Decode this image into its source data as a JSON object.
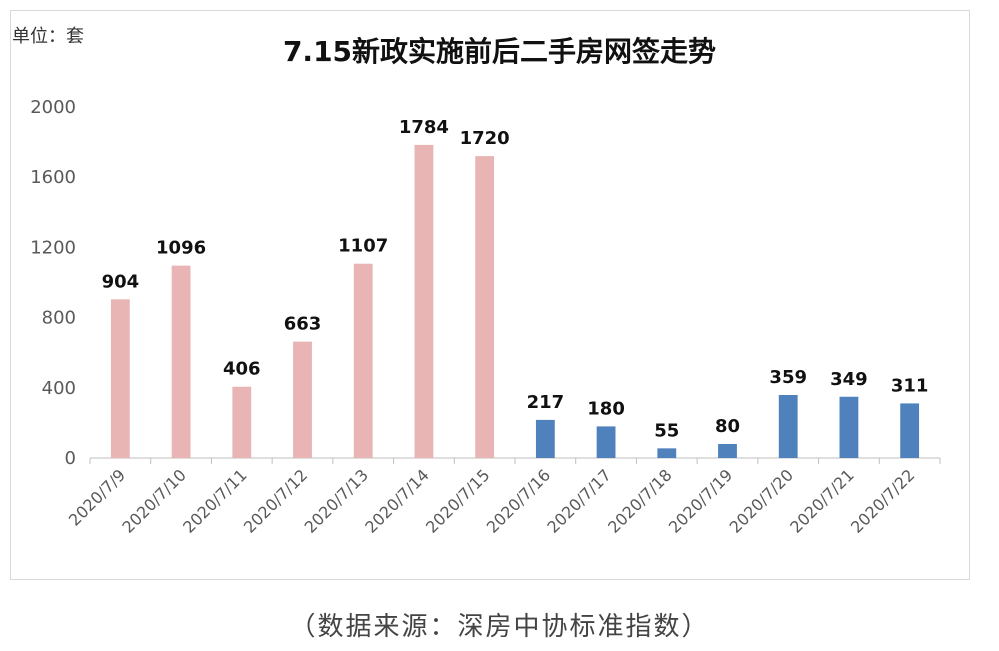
{
  "unit_label": "单位：套",
  "source_note": "（数据来源：深房中协标准指数）",
  "colors": {
    "before": "#e8b4b4",
    "after": "#4f81bd",
    "axis": "#bfbfbf"
  },
  "chart_data": {
    "type": "bar",
    "title": "7.15新政实施前后二手房网签走势",
    "xlabel": "",
    "ylabel": "",
    "ylim": [
      0,
      2000
    ],
    "yticks": [
      0,
      400,
      800,
      1200,
      1600,
      2000
    ],
    "grid": false,
    "legend": "none",
    "categories": [
      "2020/7/9",
      "2020/7/10",
      "2020/7/11",
      "2020/7/12",
      "2020/7/13",
      "2020/7/14",
      "2020/7/15",
      "2020/7/16",
      "2020/7/17",
      "2020/7/18",
      "2020/7/19",
      "2020/7/20",
      "2020/7/21",
      "2020/7/22"
    ],
    "values": [
      904,
      1096,
      406,
      663,
      1107,
      1784,
      1720,
      217,
      180,
      55,
      80,
      359,
      349,
      311
    ],
    "bar_colors": [
      "#e8b4b4",
      "#e8b4b4",
      "#e8b4b4",
      "#e8b4b4",
      "#e8b4b4",
      "#e8b4b4",
      "#e8b4b4",
      "#4f81bd",
      "#4f81bd",
      "#4f81bd",
      "#4f81bd",
      "#4f81bd",
      "#4f81bd",
      "#4f81bd"
    ],
    "data_labels": [
      "904",
      "1096",
      "406",
      "663",
      "1107",
      "1784",
      "1720",
      "217",
      "180",
      "55",
      "80",
      "359",
      "349",
      "311"
    ]
  }
}
